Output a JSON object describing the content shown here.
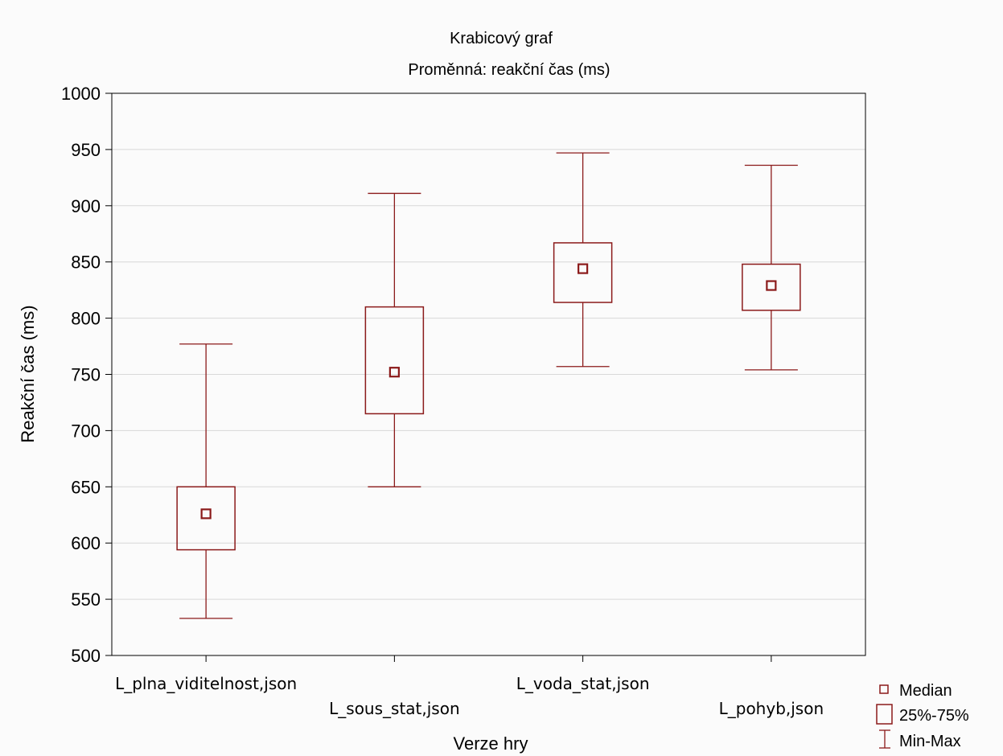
{
  "chart_data": {
    "type": "box",
    "title": "Krabicový graf",
    "subtitle": "Proměnná: reakční čas (ms)",
    "xlabel": "Verze hry",
    "ylabel": "Reakční čas (ms)",
    "ylim": [
      500,
      1000
    ],
    "yticks": [
      500,
      550,
      600,
      650,
      700,
      750,
      800,
      850,
      900,
      950,
      1000
    ],
    "grid": true,
    "categories": [
      "L_plna_viditelnost,json",
      "L_sous_stat,json",
      "L_voda_stat,json",
      "L_pohyb,json"
    ],
    "boxes": [
      {
        "min": 533,
        "q1": 594,
        "median": 626,
        "q3": 650,
        "max": 777
      },
      {
        "min": 650,
        "q1": 715,
        "median": 752,
        "q3": 810,
        "max": 911
      },
      {
        "min": 757,
        "q1": 814,
        "median": 844,
        "q3": 867,
        "max": 947
      },
      {
        "min": 754,
        "q1": 807,
        "median": 829,
        "q3": 848,
        "max": 936
      }
    ],
    "legend": {
      "position": "bottom-right",
      "items": [
        "Median",
        "25%-75%",
        "Min-Max"
      ]
    },
    "colors": {
      "box": "#8b1a1a",
      "grid": "#d8d8d8",
      "axis": "#000000"
    }
  }
}
